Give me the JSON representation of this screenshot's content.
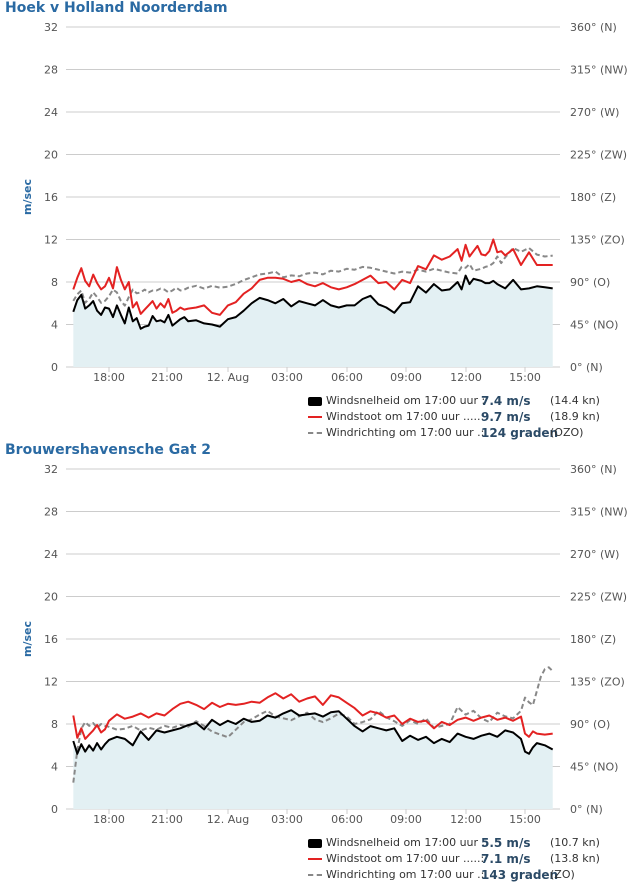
{
  "colors": {
    "speed": "#000000",
    "gust": "#e32222",
    "direction": "#888888",
    "area": "#e3f0f3",
    "grid": "#cccccc",
    "title": "#2a6aa3",
    "axis_text": "#555555"
  },
  "chart_data": [
    {
      "type": "line",
      "title": "Hoek v Holland Noorderdam",
      "ylabel": "m/sec",
      "ylim": [
        0,
        32
      ],
      "y_ticks": [
        "0",
        "4",
        "8",
        "12",
        "16",
        "20",
        "24",
        "28",
        "32"
      ],
      "y2_ticks": [
        "0° (N)",
        "45° (NO)",
        "90° (O)",
        "135° (ZO)",
        "180° (Z)",
        "225° (ZW)",
        "270° (W)",
        "315° (NW)",
        "360° (N)"
      ],
      "y2lim": [
        0,
        360
      ],
      "x_tick_labels": [
        "18:00",
        "21:00",
        "12. Aug",
        "03:00",
        "06:00",
        "09:00",
        "12:00",
        "15:00"
      ],
      "x_range_hours": [
        -1.9,
        22.8
      ],
      "grid": true,
      "series": [
        {
          "name": "Windsnelheid",
          "kind": "speed",
          "x": [
            -1.8,
            -1.6,
            -1.4,
            -1.2,
            -1.0,
            -0.8,
            -0.6,
            -0.4,
            -0.2,
            0.0,
            0.2,
            0.4,
            0.6,
            0.8,
            1.0,
            1.2,
            1.4,
            1.6,
            1.8,
            2.0,
            2.2,
            2.4,
            2.6,
            2.8,
            3.0,
            3.2,
            3.4,
            3.6,
            3.8,
            4.0,
            4.4,
            4.8,
            5.2,
            5.6,
            6.0,
            6.4,
            6.8,
            7.2,
            7.6,
            8.0,
            8.4,
            8.8,
            9.2,
            9.6,
            10.0,
            10.4,
            10.8,
            11.2,
            11.6,
            12.0,
            12.4,
            12.8,
            13.2,
            13.6,
            14.0,
            14.4,
            14.8,
            15.2,
            15.6,
            16.0,
            16.4,
            16.8,
            17.2,
            17.6,
            17.8,
            18.0,
            18.2,
            18.4,
            18.6,
            18.8,
            19.0,
            19.2,
            19.4,
            19.6,
            19.8,
            20.0,
            20.4,
            20.8,
            21.2,
            21.6,
            22.0,
            22.4
          ],
          "values": [
            5.2,
            6.3,
            6.8,
            5.5,
            5.8,
            6.2,
            5.3,
            4.9,
            5.6,
            5.5,
            4.7,
            5.8,
            4.9,
            4.1,
            5.6,
            4.3,
            4.6,
            3.6,
            3.8,
            3.9,
            4.8,
            4.3,
            4.4,
            4.2,
            4.9,
            3.9,
            4.2,
            4.5,
            4.7,
            4.3,
            4.4,
            4.1,
            4.0,
            3.8,
            4.5,
            4.7,
            5.3,
            6.0,
            6.5,
            6.3,
            6.0,
            6.4,
            5.7,
            6.2,
            6.0,
            5.8,
            6.3,
            5.8,
            5.6,
            5.8,
            5.8,
            6.4,
            6.7,
            5.9,
            5.6,
            5.1,
            6.0,
            6.1,
            7.6,
            7.0,
            7.8,
            7.2,
            7.3,
            8.0,
            7.3,
            8.6,
            7.8,
            8.3,
            8.2,
            8.1,
            7.9,
            7.9,
            8.1,
            7.8,
            7.6,
            7.4,
            8.2,
            7.3,
            7.4,
            7.6,
            7.5,
            7.4
          ]
        },
        {
          "name": "Windstoot",
          "kind": "gust",
          "x": [
            -1.8,
            -1.6,
            -1.4,
            -1.2,
            -1.0,
            -0.8,
            -0.6,
            -0.4,
            -0.2,
            0.0,
            0.2,
            0.4,
            0.6,
            0.8,
            1.0,
            1.2,
            1.4,
            1.6,
            1.8,
            2.0,
            2.2,
            2.4,
            2.6,
            2.8,
            3.0,
            3.2,
            3.4,
            3.6,
            3.8,
            4.0,
            4.4,
            4.8,
            5.2,
            5.6,
            6.0,
            6.4,
            6.8,
            7.2,
            7.6,
            8.0,
            8.4,
            8.8,
            9.2,
            9.6,
            10.0,
            10.4,
            10.8,
            11.2,
            11.6,
            12.0,
            12.4,
            12.8,
            13.2,
            13.6,
            14.0,
            14.4,
            14.8,
            15.2,
            15.6,
            16.0,
            16.4,
            16.8,
            17.2,
            17.6,
            17.8,
            18.0,
            18.2,
            18.4,
            18.6,
            18.8,
            19.0,
            19.2,
            19.4,
            19.6,
            19.8,
            20.0,
            20.4,
            20.8,
            21.2,
            21.6,
            22.0,
            22.4
          ],
          "values": [
            7.3,
            8.4,
            9.3,
            8.1,
            7.6,
            8.7,
            7.9,
            7.3,
            7.6,
            8.4,
            7.4,
            9.4,
            8.2,
            7.3,
            8.0,
            5.6,
            6.1,
            5.0,
            5.4,
            5.8,
            6.2,
            5.5,
            6.0,
            5.6,
            6.4,
            5.1,
            5.3,
            5.6,
            5.4,
            5.5,
            5.6,
            5.8,
            5.1,
            4.9,
            5.8,
            6.1,
            6.9,
            7.4,
            8.2,
            8.4,
            8.4,
            8.3,
            8.0,
            8.2,
            7.8,
            7.6,
            7.9,
            7.5,
            7.3,
            7.5,
            7.8,
            8.2,
            8.6,
            7.9,
            8.0,
            7.3,
            8.2,
            7.9,
            9.5,
            9.2,
            10.5,
            10.1,
            10.4,
            11.1,
            10.0,
            11.5,
            10.4,
            10.9,
            11.4,
            10.6,
            10.5,
            10.9,
            12.0,
            10.8,
            10.9,
            10.5,
            11.1,
            9.6,
            10.8,
            9.6,
            9.6,
            9.6
          ]
        },
        {
          "name": "Windrichting",
          "kind": "direction",
          "x": [
            -1.8,
            -1.6,
            -1.4,
            -1.2,
            -1.0,
            -0.8,
            -0.6,
            -0.4,
            -0.2,
            0.0,
            0.2,
            0.4,
            0.6,
            0.8,
            1.0,
            1.2,
            1.4,
            1.6,
            1.8,
            2.0,
            2.2,
            2.4,
            2.6,
            2.8,
            3.0,
            3.2,
            3.4,
            3.6,
            3.8,
            4.0,
            4.4,
            4.8,
            5.2,
            5.6,
            6.0,
            6.4,
            6.8,
            7.2,
            7.6,
            8.0,
            8.4,
            8.8,
            9.2,
            9.6,
            10.0,
            10.4,
            10.8,
            11.2,
            11.6,
            12.0,
            12.4,
            12.8,
            13.2,
            13.6,
            14.0,
            14.4,
            14.8,
            15.2,
            15.6,
            16.0,
            16.4,
            16.8,
            17.2,
            17.6,
            17.8,
            18.0,
            18.2,
            18.4,
            18.6,
            18.8,
            19.0,
            19.2,
            19.4,
            19.6,
            19.8,
            20.0,
            20.4,
            20.8,
            21.2,
            21.6,
            22.0,
            22.4
          ],
          "values": [
            70,
            77,
            81,
            68,
            72,
            79,
            74,
            68,
            70,
            75,
            82,
            79,
            70,
            65,
            74,
            82,
            78,
            79,
            82,
            79,
            81,
            81,
            83,
            82,
            79,
            81,
            84,
            81,
            82,
            84,
            86,
            83,
            86,
            84,
            85,
            88,
            92,
            95,
            98,
            99,
            101,
            95,
            97,
            96,
            99,
            100,
            98,
            102,
            101,
            104,
            103,
            106,
            105,
            103,
            101,
            99,
            101,
            100,
            103,
            101,
            104,
            102,
            100,
            99,
            106,
            105,
            109,
            102,
            103,
            104,
            106,
            107,
            110,
            117,
            110,
            116,
            126,
            122,
            126,
            119,
            117,
            118
          ]
        }
      ],
      "legend": [
        {
          "kind": "speed",
          "label": "Windsnelheid om 17:00 uur :",
          "value": "7.4 m/s",
          "unit": "(14.4 kn)"
        },
        {
          "kind": "gust",
          "label": "Windstoot om 17:00 uur .....:",
          "value": "9.7 m/s",
          "unit": "(18.9 kn)"
        },
        {
          "kind": "dir",
          "label": "Windrichting om 17:00 uur .:",
          "value": "124 graden",
          "unit": "(OZO)"
        }
      ]
    },
    {
      "type": "line",
      "title": "Brouwershavensche Gat 2",
      "ylabel": "m/sec",
      "ylim": [
        0,
        32
      ],
      "y_ticks": [
        "0",
        "4",
        "8",
        "12",
        "16",
        "20",
        "24",
        "28",
        "32"
      ],
      "y2_ticks": [
        "0° (N)",
        "45° (NO)",
        "90° (O)",
        "135° (ZO)",
        "180° (Z)",
        "225° (ZW)",
        "270° (W)",
        "315° (NW)",
        "360° (N)"
      ],
      "y2lim": [
        0,
        360
      ],
      "x_tick_labels": [
        "18:00",
        "21:00",
        "12. Aug",
        "03:00",
        "06:00",
        "09:00",
        "12:00",
        "15:00"
      ],
      "x_range_hours": [
        -1.9,
        22.8
      ],
      "grid": true,
      "series": [
        {
          "name": "Windsnelheid",
          "kind": "speed",
          "x": [
            -1.8,
            -1.6,
            -1.4,
            -1.2,
            -1.0,
            -0.8,
            -0.6,
            -0.4,
            -0.2,
            0.0,
            0.4,
            0.8,
            1.2,
            1.6,
            2.0,
            2.4,
            2.8,
            3.2,
            3.6,
            4.0,
            4.4,
            4.8,
            5.2,
            5.6,
            6.0,
            6.4,
            6.8,
            7.2,
            7.6,
            8.0,
            8.4,
            8.8,
            9.2,
            9.6,
            10.0,
            10.4,
            10.8,
            11.2,
            11.6,
            12.0,
            12.4,
            12.8,
            13.2,
            13.6,
            14.0,
            14.4,
            14.8,
            15.2,
            15.6,
            16.0,
            16.4,
            16.8,
            17.2,
            17.6,
            18.0,
            18.4,
            18.8,
            19.2,
            19.6,
            20.0,
            20.4,
            20.8,
            21.0,
            21.2,
            21.4,
            21.6,
            22.0,
            22.4
          ],
          "values": [
            6.4,
            5.2,
            6.1,
            5.4,
            6.0,
            5.5,
            6.2,
            5.6,
            6.1,
            6.5,
            6.8,
            6.6,
            6.0,
            7.3,
            6.5,
            7.4,
            7.2,
            7.4,
            7.6,
            7.9,
            8.1,
            7.5,
            8.4,
            7.9,
            8.3,
            8.0,
            8.5,
            8.2,
            8.3,
            8.8,
            8.6,
            9.0,
            9.3,
            8.8,
            8.9,
            9.0,
            8.7,
            9.1,
            9.2,
            8.5,
            7.8,
            7.3,
            7.8,
            7.6,
            7.4,
            7.6,
            6.4,
            6.9,
            6.5,
            6.8,
            6.2,
            6.6,
            6.3,
            7.1,
            6.8,
            6.6,
            6.9,
            7.1,
            6.8,
            7.4,
            7.2,
            6.6,
            5.4,
            5.2,
            5.8,
            6.2,
            6.0,
            5.6
          ]
        },
        {
          "name": "Windstoot",
          "kind": "gust",
          "x": [
            -1.8,
            -1.6,
            -1.4,
            -1.2,
            -1.0,
            -0.8,
            -0.6,
            -0.4,
            -0.2,
            0.0,
            0.4,
            0.8,
            1.2,
            1.6,
            2.0,
            2.4,
            2.8,
            3.2,
            3.6,
            4.0,
            4.4,
            4.8,
            5.2,
            5.6,
            6.0,
            6.4,
            6.8,
            7.2,
            7.6,
            8.0,
            8.4,
            8.8,
            9.2,
            9.6,
            10.0,
            10.4,
            10.8,
            11.2,
            11.6,
            12.0,
            12.4,
            12.8,
            13.2,
            13.6,
            14.0,
            14.4,
            14.8,
            15.2,
            15.6,
            16.0,
            16.4,
            16.8,
            17.2,
            17.6,
            18.0,
            18.4,
            18.8,
            19.2,
            19.6,
            20.0,
            20.4,
            20.8,
            21.0,
            21.2,
            21.4,
            21.6,
            22.0,
            22.4
          ],
          "values": [
            8.8,
            6.7,
            7.6,
            6.6,
            7.0,
            7.4,
            7.9,
            7.2,
            7.5,
            8.3,
            8.9,
            8.5,
            8.7,
            9.0,
            8.6,
            9.0,
            8.8,
            9.4,
            9.9,
            10.1,
            9.8,
            9.4,
            10.0,
            9.6,
            9.9,
            9.8,
            9.9,
            10.1,
            10.0,
            10.5,
            10.9,
            10.4,
            10.8,
            10.1,
            10.4,
            10.6,
            9.8,
            10.7,
            10.5,
            10.0,
            9.5,
            8.8,
            9.2,
            9.0,
            8.6,
            8.8,
            8.0,
            8.5,
            8.2,
            8.3,
            7.6,
            8.2,
            7.9,
            8.4,
            8.6,
            8.3,
            8.6,
            8.8,
            8.4,
            8.6,
            8.3,
            8.7,
            7.1,
            6.8,
            7.3,
            7.1,
            7.0,
            7.1
          ]
        },
        {
          "name": "Windrichting",
          "kind": "direction",
          "x": [
            -1.8,
            -1.6,
            -1.4,
            -1.2,
            -1.0,
            -0.8,
            -0.6,
            -0.4,
            -0.2,
            0.0,
            0.4,
            0.8,
            1.2,
            1.6,
            2.0,
            2.4,
            2.8,
            3.2,
            3.6,
            4.0,
            4.4,
            4.8,
            5.2,
            5.6,
            6.0,
            6.4,
            6.8,
            7.2,
            7.6,
            8.0,
            8.4,
            8.8,
            9.2,
            9.6,
            10.0,
            10.4,
            10.8,
            11.2,
            11.6,
            12.0,
            12.4,
            12.8,
            13.2,
            13.6,
            14.0,
            14.4,
            14.8,
            15.2,
            15.6,
            16.0,
            16.4,
            16.8,
            17.2,
            17.6,
            18.0,
            18.4,
            18.8,
            19.2,
            19.6,
            20.0,
            20.4,
            20.8,
            21.0,
            21.2,
            21.4,
            21.6,
            21.8,
            22.0,
            22.2,
            22.4
          ],
          "values": [
            28,
            62,
            85,
            92,
            88,
            91,
            86,
            90,
            88,
            87,
            84,
            85,
            88,
            83,
            86,
            84,
            88,
            86,
            89,
            87,
            93,
            88,
            82,
            79,
            76,
            84,
            92,
            95,
            100,
            104,
            98,
            96,
            94,
            98,
            102,
            95,
            92,
            96,
            101,
            98,
            90,
            92,
            95,
            104,
            97,
            93,
            88,
            94,
            90,
            96,
            86,
            88,
            90,
            108,
            100,
            104,
            96,
            92,
            102,
            98,
            96,
            104,
            118,
            113,
            110,
            125,
            140,
            148,
            150,
            146
          ]
        }
      ],
      "legend": [
        {
          "kind": "speed",
          "label": "Windsnelheid om 17:00 uur :",
          "value": "5.5 m/s",
          "unit": "(10.7 kn)"
        },
        {
          "kind": "gust",
          "label": "Windstoot om 17:00 uur .....:",
          "value": "7.1 m/s",
          "unit": "(13.8 kn)"
        },
        {
          "kind": "dir",
          "label": "Windrichting om 17:00 uur .:",
          "value": "143 graden",
          "unit": "(ZO)"
        }
      ]
    }
  ]
}
